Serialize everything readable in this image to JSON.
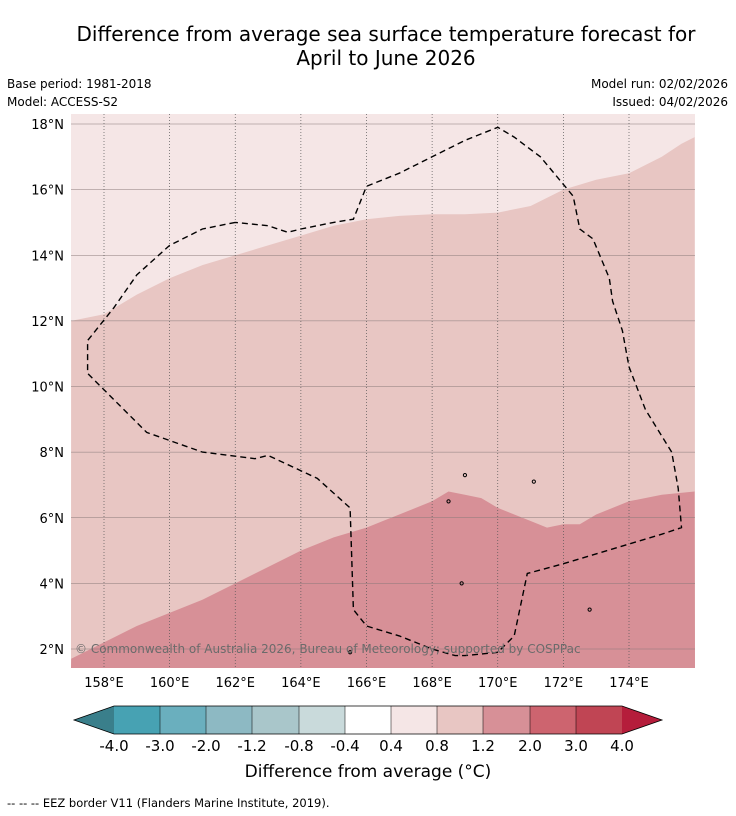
{
  "title_line1": "Difference from average sea surface temperature forecast for",
  "title_line2": "April to June 2026",
  "base_period": "Base period: 1981-2018",
  "model": "Model: ACCESS-S2",
  "model_run": "Model run: 02/02/2026",
  "issued": "Issued: 04/02/2026",
  "copyright": "© Commonwealth of Australia 2026, Bureau of Meteorology; supported by COSPPac",
  "colorbar_title": "Difference from average (°C)",
  "footer": "--  --  -- EEZ border V11 (Flanders Marine Institute, 2019).",
  "chart_data": {
    "type": "heatmap",
    "lon_range": [
      157,
      176
    ],
    "lat_range": [
      1.4,
      18.3
    ],
    "lon_ticks": [
      158,
      160,
      162,
      164,
      166,
      168,
      170,
      172,
      174
    ],
    "lon_tick_labels": [
      "158°E",
      "160°E",
      "162°E",
      "164°E",
      "166°E",
      "168°E",
      "170°E",
      "172°E",
      "174°E"
    ],
    "lat_ticks": [
      2,
      4,
      6,
      8,
      10,
      12,
      14,
      16,
      18
    ],
    "lat_tick_labels": [
      "2°N",
      "4°N",
      "6°N",
      "8°N",
      "10°N",
      "12°N",
      "14°N",
      "16°N",
      "18°N"
    ],
    "colorbar": {
      "labels": [
        "-4.0",
        "-3.0",
        "-2.0",
        "-1.2",
        "-0.8",
        "-0.4",
        "0.4",
        "0.8",
        "1.2",
        "2.0",
        "3.0",
        "4.0"
      ],
      "colors": [
        "#47a2b3",
        "#6aafbe",
        "#8db9c3",
        "#a9c6ca",
        "#c9dadb",
        "#ffffff",
        "#f5e6e6",
        "#e8c6c3",
        "#d79097",
        "#cd646f",
        "#c04554"
      ],
      "under_color": "#3a7f8b",
      "over_color": "#b51d3b"
    },
    "regions": [
      {
        "range": "0.4 to 0.8",
        "color": "#f5e6e6",
        "boundary_lower": [
          [
            157,
            12.0
          ],
          [
            158,
            12.2
          ],
          [
            159,
            12.8
          ],
          [
            160,
            13.3
          ],
          [
            161,
            13.7
          ],
          [
            162,
            14.0
          ],
          [
            163,
            14.3
          ],
          [
            164,
            14.6
          ],
          [
            165,
            14.9
          ],
          [
            166,
            15.1
          ],
          [
            167,
            15.2
          ],
          [
            168,
            15.25
          ],
          [
            169,
            15.25
          ],
          [
            170,
            15.3
          ],
          [
            171,
            15.5
          ],
          [
            172,
            16.0
          ],
          [
            173,
            16.3
          ],
          [
            174,
            16.5
          ],
          [
            175,
            17.0
          ],
          [
            175.6,
            17.4
          ],
          [
            176,
            17.6
          ]
        ]
      },
      {
        "range": "0.8 to 1.2",
        "color": "#e8c6c3"
      },
      {
        "range": "1.2 to 2.0",
        "color": "#d79097",
        "boundary_upper": [
          [
            157,
            1.7
          ],
          [
            158,
            2.2
          ],
          [
            159,
            2.7
          ],
          [
            160,
            3.1
          ],
          [
            161,
            3.5
          ],
          [
            162,
            4.0
          ],
          [
            163,
            4.5
          ],
          [
            164,
            5.0
          ],
          [
            165,
            5.4
          ],
          [
            166,
            5.7
          ],
          [
            167,
            6.1
          ],
          [
            168,
            6.5
          ],
          [
            168.5,
            6.8
          ],
          [
            169,
            6.7
          ],
          [
            169.5,
            6.6
          ],
          [
            170,
            6.3
          ],
          [
            171,
            5.9
          ],
          [
            171.5,
            5.7
          ],
          [
            172,
            5.8
          ],
          [
            172.5,
            5.8
          ],
          [
            173,
            6.1
          ],
          [
            174,
            6.5
          ],
          [
            175,
            6.7
          ],
          [
            176,
            6.8
          ]
        ]
      }
    ],
    "eez_border": [
      [
        162,
        15.0
      ],
      [
        161,
        14.8
      ],
      [
        160,
        14.3
      ],
      [
        159,
        13.4
      ],
      [
        158.3,
        12.4
      ],
      [
        157.5,
        11.4
      ],
      [
        157.5,
        10.4
      ],
      [
        158,
        9.9
      ],
      [
        159.3,
        8.6
      ],
      [
        161,
        8.0
      ],
      [
        162.6,
        7.8
      ],
      [
        163,
        7.9
      ],
      [
        164.5,
        7.2
      ],
      [
        165.5,
        6.3
      ],
      [
        165.6,
        3.2
      ],
      [
        166,
        2.7
      ],
      [
        167,
        2.4
      ],
      [
        168,
        2.0
      ],
      [
        168.7,
        1.8
      ],
      [
        169,
        1.8
      ],
      [
        170,
        1.9
      ],
      [
        170.5,
        2.4
      ],
      [
        170.9,
        4.3
      ],
      [
        172,
        4.6
      ],
      [
        175,
        5.5
      ],
      [
        175.6,
        5.7
      ],
      [
        175.5,
        6.9
      ],
      [
        175.3,
        8.0
      ],
      [
        174.5,
        9.3
      ],
      [
        174,
        10.6
      ],
      [
        173.8,
        11.7
      ],
      [
        173.5,
        12.6
      ],
      [
        173.4,
        13.3
      ],
      [
        172.9,
        14.5
      ],
      [
        172.5,
        14.8
      ],
      [
        172.3,
        15.8
      ],
      [
        171.3,
        17.0
      ],
      [
        170.5,
        17.6
      ],
      [
        170,
        17.9
      ],
      [
        169,
        17.5
      ],
      [
        168,
        17.0
      ],
      [
        167,
        16.5
      ],
      [
        166,
        16.1
      ],
      [
        165.6,
        15.1
      ],
      [
        165,
        15.0
      ],
      [
        164,
        14.8
      ],
      [
        163.6,
        14.7
      ],
      [
        163,
        14.9
      ],
      [
        162,
        15.0
      ]
    ],
    "islands": [
      [
        168.5,
        6.5
      ],
      [
        169,
        7.3
      ],
      [
        171.1,
        7.1
      ],
      [
        165.5,
        1.9
      ],
      [
        172.8,
        3.2
      ],
      [
        168.9,
        4.0
      ]
    ]
  }
}
